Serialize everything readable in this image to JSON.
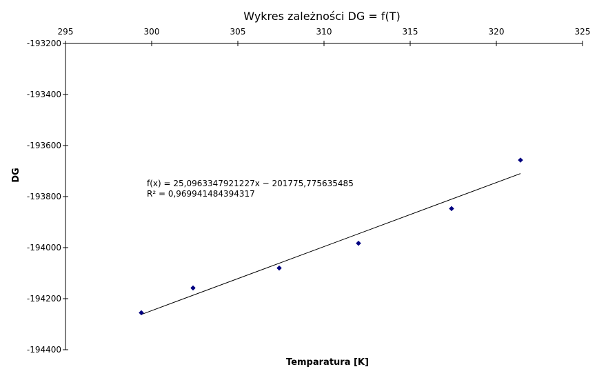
{
  "chart_data": {
    "type": "scatter",
    "title": "Wykres zależności DG = f(T)",
    "xlabel": "Temparatura [K]",
    "ylabel": "DG",
    "xlim": [
      295,
      325
    ],
    "ylim": [
      -194400,
      -193200
    ],
    "x_ticks": [
      295,
      300,
      305,
      310,
      315,
      320,
      325
    ],
    "y_ticks": [
      -193200,
      -193400,
      -193600,
      -193800,
      -194000,
      -194200,
      -194400
    ],
    "x_axis_position": "top",
    "grid": false,
    "marker_color": "#000080",
    "trendline_color": "#000000",
    "series": [
      {
        "x": [
          299.4,
          302.4,
          307.4,
          312.0,
          317.4,
          321.4
        ],
        "y": [
          -194255,
          -194158,
          -194080,
          -193983,
          -193847,
          -193657
        ]
      }
    ],
    "trendline": {
      "type": "linear",
      "slope": 25.0963347921227,
      "intercept": -201775.775635485,
      "x_range": [
        299.4,
        321.4
      ]
    },
    "annotations": [
      "f(x) = 25,0963347921227x − 201775,775635485",
      "R² = 0,969941484394317"
    ]
  }
}
